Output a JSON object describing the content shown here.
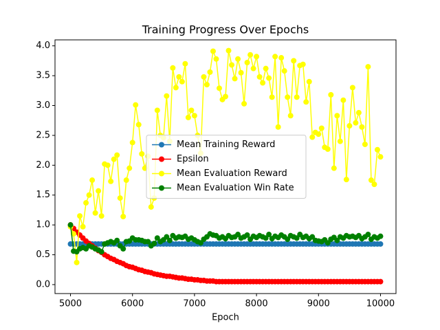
{
  "chart_data": {
    "type": "line",
    "title": "Training Progress Over Epochs",
    "x_label": "Epoch",
    "xlim": [
      4750,
      10250
    ],
    "ylim": [
      -0.15,
      4.1
    ],
    "xticks": [
      5000,
      6000,
      7000,
      8000,
      9000,
      10000
    ],
    "yticks": [
      {
        "value": 0,
        "label": "0.0"
      },
      0.5,
      {
        "value": 1,
        "label": "1.0"
      },
      1.5,
      {
        "value": 2,
        "label": "2.0"
      },
      2.5,
      {
        "value": 3,
        "label": "3.0"
      },
      3.5,
      {
        "value": 4,
        "label": "4.0"
      }
    ],
    "grid": false,
    "legend": "center",
    "x": [
      5000,
      5050,
      5100,
      5150,
      5200,
      5250,
      5300,
      5350,
      5400,
      5450,
      5500,
      5550,
      5600,
      5650,
      5700,
      5750,
      5800,
      5850,
      5900,
      5950,
      6000,
      6050,
      6100,
      6150,
      6200,
      6250,
      6300,
      6350,
      6400,
      6450,
      6500,
      6550,
      6600,
      6650,
      6700,
      6750,
      6800,
      6850,
      6900,
      6950,
      7000,
      7050,
      7100,
      7150,
      7200,
      7250,
      7300,
      7350,
      7400,
      7450,
      7500,
      7550,
      7600,
      7650,
      7700,
      7750,
      7800,
      7850,
      7900,
      7950,
      8000,
      8050,
      8100,
      8150,
      8200,
      8250,
      8300,
      8350,
      8400,
      8450,
      8500,
      8550,
      8600,
      8650,
      8700,
      8750,
      8800,
      8850,
      8900,
      8950,
      9000,
      9050,
      9100,
      9150,
      9200,
      9250,
      9300,
      9350,
      9400,
      9450,
      9500,
      9550,
      9600,
      9650,
      9700,
      9750,
      9800,
      9850,
      9900,
      9950,
      10000
    ],
    "series": [
      {
        "name": "Mean Training Reward",
        "color": "#1f77b4",
        "values": [
          0.68,
          0.68,
          0.68,
          0.68,
          0.68,
          0.68,
          0.68,
          0.68,
          0.68,
          0.68,
          0.68,
          0.68,
          0.68,
          0.68,
          0.68,
          0.68,
          0.68,
          0.68,
          0.68,
          0.68,
          0.68,
          0.68,
          0.68,
          0.68,
          0.68,
          0.68,
          0.68,
          0.68,
          0.68,
          0.68,
          0.68,
          0.68,
          0.68,
          0.68,
          0.68,
          0.68,
          0.68,
          0.68,
          0.68,
          0.68,
          0.68,
          0.68,
          0.68,
          0.68,
          0.68,
          0.68,
          0.68,
          0.68,
          0.68,
          0.68,
          0.68,
          0.68,
          0.68,
          0.68,
          0.68,
          0.68,
          0.68,
          0.68,
          0.68,
          0.68,
          0.68,
          0.68,
          0.68,
          0.68,
          0.68,
          0.68,
          0.68,
          0.68,
          0.68,
          0.68,
          0.68,
          0.68,
          0.68,
          0.68,
          0.68,
          0.68,
          0.68,
          0.68,
          0.68,
          0.68,
          0.68,
          0.68,
          0.68,
          0.68,
          0.68,
          0.68,
          0.68,
          0.68,
          0.68,
          0.68,
          0.68,
          0.68,
          0.68,
          0.68,
          0.68,
          0.68,
          0.68,
          0.68,
          0.68,
          0.68,
          0.68
        ]
      },
      {
        "name": "Epsilon",
        "color": "#ff0000",
        "values": [
          1.0,
          0.94,
          0.88,
          0.83,
          0.78,
          0.73,
          0.69,
          0.65,
          0.61,
          0.57,
          0.54,
          0.5,
          0.47,
          0.44,
          0.42,
          0.39,
          0.37,
          0.35,
          0.32,
          0.3,
          0.29,
          0.27,
          0.25,
          0.24,
          0.22,
          0.21,
          0.2,
          0.18,
          0.17,
          0.16,
          0.15,
          0.14,
          0.14,
          0.13,
          0.12,
          0.11,
          0.11,
          0.1,
          0.09,
          0.09,
          0.08,
          0.08,
          0.07,
          0.07,
          0.06,
          0.06,
          0.06,
          0.05,
          0.05,
          0.05,
          0.05,
          0.05,
          0.05,
          0.05,
          0.05,
          0.05,
          0.05,
          0.05,
          0.05,
          0.05,
          0.05,
          0.05,
          0.05,
          0.05,
          0.05,
          0.05,
          0.05,
          0.05,
          0.05,
          0.05,
          0.05,
          0.05,
          0.05,
          0.05,
          0.05,
          0.05,
          0.05,
          0.05,
          0.05,
          0.05,
          0.05,
          0.05,
          0.05,
          0.05,
          0.05,
          0.05,
          0.05,
          0.05,
          0.05,
          0.05,
          0.05,
          0.05,
          0.05,
          0.05,
          0.05,
          0.05,
          0.05,
          0.05,
          0.05,
          0.05,
          0.05
        ]
      },
      {
        "name": "Mean Evaluation Reward",
        "color": "#ffff00",
        "values": [
          0.97,
          0.85,
          0.37,
          1.15,
          0.97,
          1.37,
          1.5,
          1.75,
          1.2,
          1.57,
          1.15,
          2.02,
          2.0,
          1.73,
          2.1,
          2.17,
          1.45,
          1.14,
          1.75,
          1.95,
          2.38,
          3.01,
          2.68,
          2.19,
          1.95,
          2.15,
          1.3,
          1.45,
          2.92,
          2.5,
          2.46,
          3.16,
          2.4,
          3.63,
          3.3,
          3.48,
          3.4,
          3.7,
          2.8,
          2.92,
          2.83,
          2.5,
          2.2,
          3.48,
          3.35,
          3.56,
          3.91,
          3.78,
          3.29,
          3.1,
          3.15,
          3.92,
          3.68,
          3.45,
          3.78,
          3.55,
          3.03,
          3.72,
          3.85,
          3.62,
          3.82,
          3.48,
          3.38,
          3.62,
          3.46,
          3.14,
          3.82,
          2.64,
          3.8,
          3.58,
          3.14,
          2.83,
          3.75,
          3.14,
          3.67,
          3.69,
          3.06,
          3.4,
          2.47,
          2.55,
          2.52,
          2.62,
          2.3,
          2.27,
          3.18,
          1.95,
          2.83,
          2.4,
          3.09,
          1.76,
          2.66,
          3.3,
          2.71,
          2.88,
          2.64,
          2.35,
          3.65,
          1.75,
          1.68,
          2.26,
          2.14
        ]
      },
      {
        "name": "Mean Evaluation Win Rate",
        "color": "#008000",
        "values": [
          1.0,
          0.56,
          0.55,
          0.6,
          0.62,
          0.6,
          0.65,
          0.63,
          0.6,
          0.58,
          0.55,
          0.68,
          0.7,
          0.72,
          0.7,
          0.74,
          0.65,
          0.6,
          0.72,
          0.73,
          0.78,
          0.75,
          0.75,
          0.74,
          0.72,
          0.72,
          0.65,
          0.69,
          0.78,
          0.72,
          0.75,
          0.8,
          0.74,
          0.82,
          0.78,
          0.8,
          0.79,
          0.81,
          0.76,
          0.78,
          0.75,
          0.72,
          0.7,
          0.76,
          0.8,
          0.85,
          0.83,
          0.82,
          0.78,
          0.8,
          0.77,
          0.82,
          0.79,
          0.8,
          0.84,
          0.78,
          0.8,
          0.83,
          0.76,
          0.81,
          0.79,
          0.82,
          0.8,
          0.78,
          0.84,
          0.77,
          0.81,
          0.79,
          0.83,
          0.8,
          0.76,
          0.82,
          0.8,
          0.78,
          0.84,
          0.79,
          0.81,
          0.77,
          0.8,
          0.74,
          0.73,
          0.72,
          0.75,
          0.7,
          0.76,
          0.79,
          0.74,
          0.8,
          0.78,
          0.82,
          0.8,
          0.81,
          0.79,
          0.82,
          0.77,
          0.8,
          0.84,
          0.76,
          0.8,
          0.78,
          0.81
        ]
      }
    ]
  }
}
